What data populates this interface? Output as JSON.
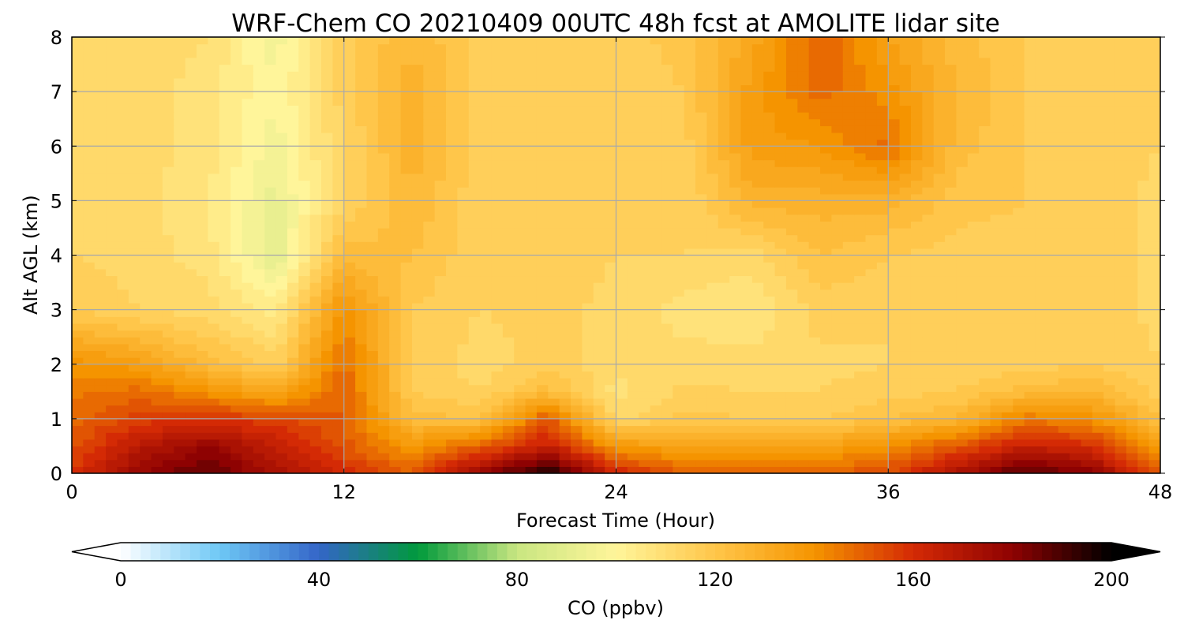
{
  "chart_data": {
    "type": "heatmap",
    "title": "WRF-Chem CO  20210409 00UTC 48h fcst at AMOLITE lidar site",
    "xlabel": "Forecast Time (Hour)",
    "ylabel": "Alt AGL (km)",
    "xlim": [
      0,
      48
    ],
    "ylim": [
      0,
      8
    ],
    "xticks": [
      "0",
      "12",
      "24",
      "36",
      "48"
    ],
    "yticks": [
      "0",
      "1",
      "2",
      "3",
      "4",
      "5",
      "6",
      "7",
      "8"
    ],
    "grid": true,
    "colorbar": {
      "label": "CO  (ppbv)",
      "range": [
        0,
        200
      ],
      "ticks": [
        "0",
        "40",
        "80",
        "120",
        "160",
        "200"
      ],
      "extend": "both",
      "colors": [
        "#ffffff",
        "#6ec8f5",
        "#3465c8",
        "#009a3c",
        "#c9e681",
        "#fff59a",
        "#ffc64a",
        "#f59400",
        "#d42a05",
        "#8e0202",
        "#000000"
      ]
    },
    "x": [
      0,
      3,
      6,
      9,
      12,
      15,
      18,
      21,
      24,
      27,
      30,
      33,
      36,
      39,
      42,
      45,
      48
    ],
    "y": [
      0,
      0.5,
      1,
      1.5,
      2,
      3,
      4,
      5,
      6,
      7,
      8
    ],
    "z": [
      [
        158,
        178,
        188,
        172,
        160,
        150,
        178,
        198,
        162,
        150,
        148,
        150,
        154,
        172,
        190,
        180,
        150
      ],
      [
        152,
        168,
        178,
        165,
        152,
        138,
        150,
        165,
        138,
        134,
        132,
        134,
        140,
        152,
        164,
        160,
        135
      ],
      [
        148,
        156,
        158,
        155,
        150,
        124,
        122,
        152,
        112,
        120,
        118,
        118,
        122,
        126,
        145,
        140,
        122
      ],
      [
        145,
        148,
        140,
        132,
        150,
        118,
        114,
        124,
        108,
        115,
        114,
        114,
        116,
        118,
        124,
        126,
        116
      ],
      [
        140,
        136,
        124,
        116,
        148,
        117,
        112,
        116,
        112,
        112,
        112,
        113,
        114,
        115,
        116,
        118,
        114
      ],
      [
        118,
        114,
        112,
        104,
        140,
        118,
        114,
        115,
        113,
        108,
        106,
        116,
        114,
        114,
        116,
        116,
        113
      ],
      [
        114,
        112,
        108,
        90,
        124,
        122,
        115,
        116,
        114,
        114,
        112,
        122,
        118,
        116,
        116,
        116,
        113
      ],
      [
        112,
        112,
        106,
        92,
        114,
        126,
        115,
        116,
        116,
        114,
        128,
        128,
        128,
        120,
        118,
        116,
        113
      ],
      [
        112,
        112,
        108,
        96,
        114,
        128,
        116,
        117,
        115,
        116,
        136,
        138,
        148,
        124,
        118,
        116,
        114
      ],
      [
        112,
        112,
        108,
        98,
        116,
        128,
        116,
        118,
        114,
        118,
        136,
        148,
        140,
        126,
        118,
        116,
        114
      ],
      [
        112,
        112,
        110,
        96,
        116,
        126,
        116,
        118,
        116,
        120,
        132,
        150,
        134,
        124,
        118,
        116,
        114
      ]
    ]
  }
}
